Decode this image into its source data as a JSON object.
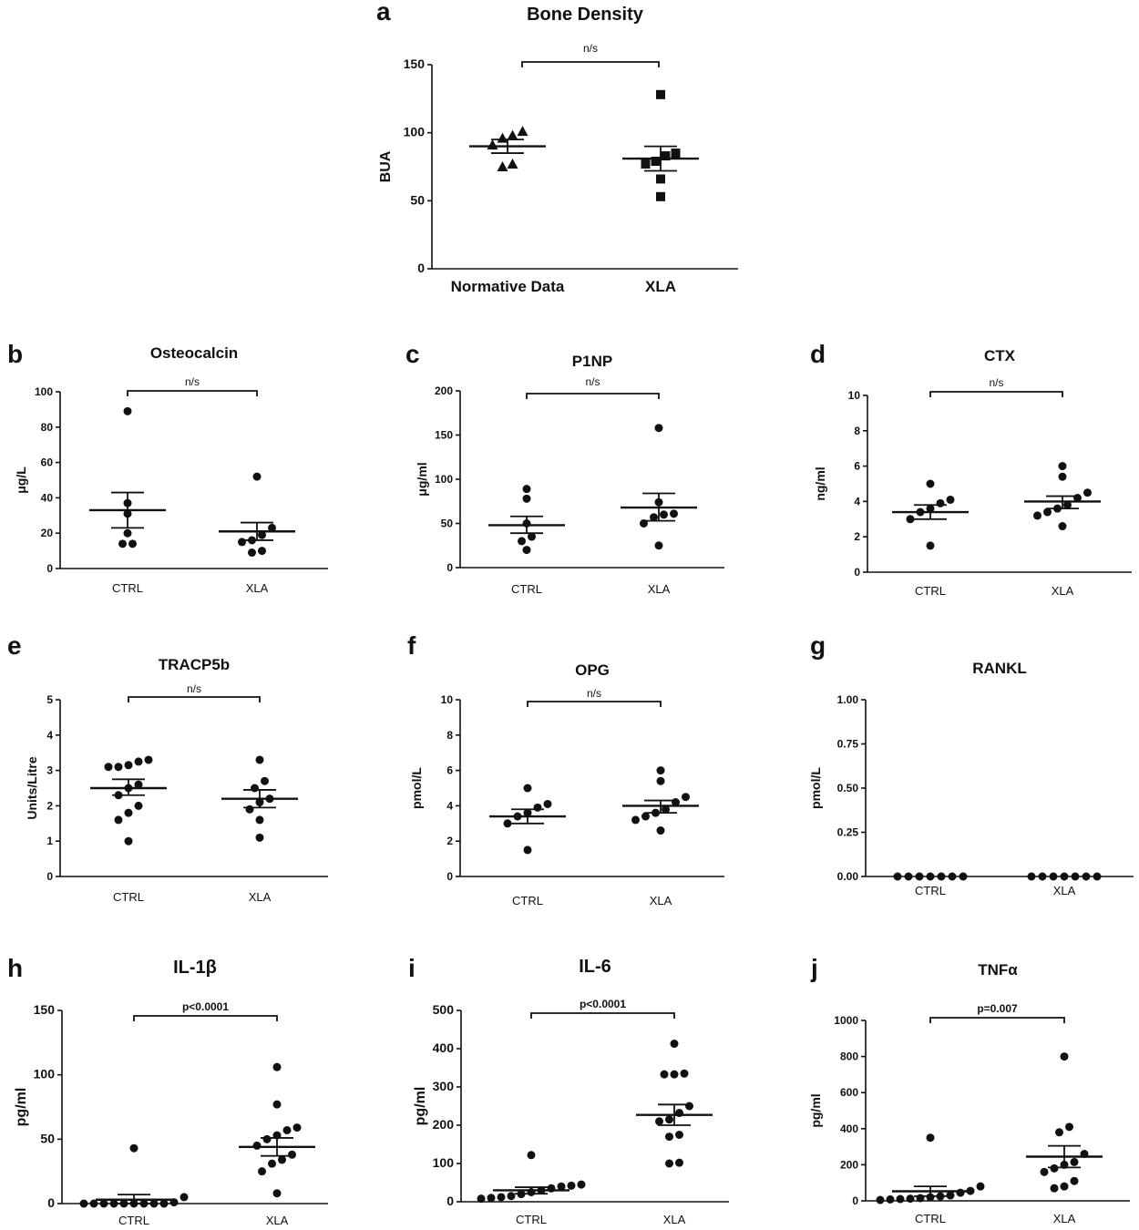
{
  "chart_data": [
    {
      "id": "a",
      "letter": "a",
      "type": "scatter",
      "title": "Bone Density",
      "ylabel": "BUA",
      "ylim": [
        0,
        150
      ],
      "yticks": [
        0,
        50,
        100,
        150
      ],
      "ytick_labels": [
        "0",
        "50",
        "100",
        "150"
      ],
      "categories": [
        "Normative Data",
        "XLA"
      ],
      "series": [
        {
          "name": "Normative Data",
          "marker": "triangle",
          "values": [
            101,
            98,
            96,
            91,
            77,
            75
          ],
          "mean": 90,
          "sem_upper": 95,
          "sem_lower": 85
        },
        {
          "name": "XLA",
          "marker": "square",
          "values": [
            128,
            85,
            83,
            79,
            77,
            66,
            53
          ],
          "mean": 81,
          "sem_upper": 90,
          "sem_lower": 72
        }
      ],
      "comparison": {
        "label": "n/s"
      }
    },
    {
      "id": "b",
      "letter": "b",
      "type": "scatter",
      "title": "Osteocalcin",
      "ylabel": "μg/L",
      "ylim": [
        0,
        100
      ],
      "yticks": [
        0,
        20,
        40,
        60,
        80,
        100
      ],
      "ytick_labels": [
        "0",
        "20",
        "40",
        "60",
        "80",
        "100"
      ],
      "categories": [
        "CTRL",
        "XLA"
      ],
      "series": [
        {
          "name": "CTRL",
          "values": [
            89,
            37,
            31,
            20,
            14,
            14
          ],
          "mean": 33,
          "sem_upper": 43,
          "sem_lower": 23
        },
        {
          "name": "XLA",
          "values": [
            52,
            23,
            19,
            16,
            15,
            10,
            9
          ],
          "mean": 21,
          "sem_upper": 26,
          "sem_lower": 16
        }
      ],
      "comparison": {
        "label": "n/s"
      }
    },
    {
      "id": "c",
      "letter": "c",
      "type": "scatter",
      "title": "P1NP",
      "ylabel": "μg/ml",
      "ylim": [
        0,
        200
      ],
      "yticks": [
        0,
        50,
        100,
        150,
        200
      ],
      "ytick_labels": [
        "0",
        "50",
        "100",
        "150",
        "200"
      ],
      "categories": [
        "CTRL",
        "XLA"
      ],
      "series": [
        {
          "name": "CTRL",
          "values": [
            89,
            78,
            50,
            35,
            30,
            20
          ],
          "mean": 48,
          "sem_upper": 58,
          "sem_lower": 39
        },
        {
          "name": "XLA",
          "values": [
            158,
            74,
            61,
            60,
            57,
            50,
            25
          ],
          "mean": 68,
          "sem_upper": 84,
          "sem_lower": 53
        }
      ],
      "comparison": {
        "label": "n/s"
      }
    },
    {
      "id": "d",
      "letter": "d",
      "type": "scatter",
      "title": "CTX",
      "ylabel": "ng/ml",
      "ylim": [
        0,
        10
      ],
      "yticks": [
        0,
        2,
        4,
        6,
        8,
        10
      ],
      "ytick_labels": [
        "0",
        "2",
        "4",
        "6",
        "8",
        "10"
      ],
      "categories": [
        "CTRL",
        "XLA"
      ],
      "series": [
        {
          "name": "CTRL",
          "values": [
            5.0,
            4.1,
            3.9,
            3.6,
            3.4,
            3.0,
            1.5
          ],
          "mean": 3.4,
          "sem_upper": 3.8,
          "sem_lower": 3.0
        },
        {
          "name": "XLA",
          "values": [
            6.0,
            5.4,
            4.5,
            4.2,
            3.8,
            3.6,
            3.4,
            3.2,
            2.6
          ],
          "mean": 4.0,
          "sem_upper": 4.3,
          "sem_lower": 3.6
        }
      ],
      "comparison": {
        "label": "n/s"
      }
    },
    {
      "id": "e",
      "letter": "e",
      "type": "scatter",
      "title": "TRACP5b",
      "ylabel": "Units/Litre",
      "ylim": [
        0,
        5
      ],
      "yticks": [
        0,
        1,
        2,
        3,
        4,
        5
      ],
      "ytick_labels": [
        "0",
        "1",
        "2",
        "3",
        "4",
        "5"
      ],
      "categories": [
        "CTRL",
        "XLA"
      ],
      "series": [
        {
          "name": "CTRL",
          "values": [
            3.3,
            3.25,
            3.15,
            3.1,
            3.1,
            2.6,
            2.5,
            2.3,
            2.0,
            1.8,
            1.6,
            1.0
          ],
          "mean": 2.5,
          "sem_upper": 2.75,
          "sem_lower": 2.3
        },
        {
          "name": "XLA",
          "values": [
            3.3,
            2.7,
            2.5,
            2.2,
            2.1,
            1.9,
            1.6,
            1.1
          ],
          "mean": 2.2,
          "sem_upper": 2.45,
          "sem_lower": 1.95
        }
      ],
      "comparison": {
        "label": "n/s"
      }
    },
    {
      "id": "f",
      "letter": "f",
      "type": "scatter",
      "title": "OPG",
      "ylabel": "pmol/L",
      "ylim": [
        0,
        10
      ],
      "yticks": [
        0,
        2,
        4,
        6,
        8,
        10
      ],
      "ytick_labels": [
        "0",
        "2",
        "4",
        "6",
        "8",
        "10"
      ],
      "categories": [
        "CTRL",
        "XLA"
      ],
      "series": [
        {
          "name": "CTRL",
          "values": [
            5.0,
            4.1,
            3.9,
            3.6,
            3.4,
            3.0,
            1.5
          ],
          "mean": 3.4,
          "sem_upper": 3.8,
          "sem_lower": 3.0
        },
        {
          "name": "XLA",
          "values": [
            6.0,
            5.4,
            4.5,
            4.2,
            3.8,
            3.6,
            3.4,
            3.2,
            2.6
          ],
          "mean": 4.0,
          "sem_upper": 4.3,
          "sem_lower": 3.6
        }
      ],
      "comparison": {
        "label": "n/s"
      }
    },
    {
      "id": "g",
      "letter": "g",
      "type": "scatter",
      "title": "RANKL",
      "ylabel": "pmol/L",
      "ylim": [
        0,
        1
      ],
      "yticks": [
        0,
        0.25,
        0.5,
        0.75,
        1
      ],
      "ytick_labels": [
        "0.00",
        "0.25",
        "0.50",
        "0.75",
        "1.00"
      ],
      "categories": [
        "CTRL",
        "XLA"
      ],
      "series": [
        {
          "name": "CTRL",
          "values": [
            0,
            0,
            0,
            0,
            0,
            0,
            0
          ]
        },
        {
          "name": "XLA",
          "values": [
            0,
            0,
            0,
            0,
            0,
            0,
            0
          ]
        }
      ]
    },
    {
      "id": "h",
      "letter": "h",
      "type": "scatter",
      "title": "IL-1β",
      "ylabel": "pg/ml",
      "ylim": [
        0,
        150
      ],
      "yticks": [
        0,
        50,
        100,
        150
      ],
      "ytick_labels": [
        "0",
        "50",
        "100",
        "150"
      ],
      "categories": [
        "CTRL",
        "XLA"
      ],
      "series": [
        {
          "name": "CTRL",
          "values": [
            43,
            5,
            1,
            0,
            0,
            0,
            0,
            0,
            0,
            0,
            0,
            0
          ],
          "mean": 3,
          "sem_upper": 7,
          "sem_lower": 0
        },
        {
          "name": "XLA",
          "values": [
            106,
            77,
            59,
            57,
            53,
            50,
            45,
            38,
            34,
            31,
            25,
            8
          ],
          "mean": 44,
          "sem_upper": 51,
          "sem_lower": 37
        }
      ],
      "comparison": {
        "label": "p<0.0001"
      }
    },
    {
      "id": "i",
      "letter": "i",
      "type": "scatter",
      "title": "IL-6",
      "ylabel": "pg/ml",
      "ylim": [
        0,
        500
      ],
      "yticks": [
        0,
        100,
        200,
        300,
        400,
        500
      ],
      "ytick_labels": [
        "0",
        "100",
        "200",
        "300",
        "400",
        "500"
      ],
      "categories": [
        "CTRL",
        "XLA"
      ],
      "series": [
        {
          "name": "CTRL",
          "values": [
            122,
            45,
            42,
            40,
            35,
            30,
            25,
            20,
            15,
            12,
            10,
            8
          ],
          "mean": 30,
          "sem_upper": 38,
          "sem_lower": 21
        },
        {
          "name": "XLA",
          "values": [
            413,
            335,
            333,
            333,
            250,
            232,
            215,
            210,
            175,
            170,
            102,
            100
          ],
          "mean": 227,
          "sem_upper": 254,
          "sem_lower": 200
        }
      ],
      "comparison": {
        "label": "p<0.0001"
      }
    },
    {
      "id": "j",
      "letter": "j",
      "type": "scatter",
      "title": "TNFα",
      "ylabel": "pg/ml",
      "ylim": [
        0,
        1000
      ],
      "yticks": [
        0,
        200,
        400,
        600,
        800,
        1000
      ],
      "ytick_labels": [
        "0",
        "200",
        "400",
        "600",
        "800",
        "1000"
      ],
      "categories": [
        "CTRL",
        "XLA"
      ],
      "series": [
        {
          "name": "CTRL",
          "values": [
            350,
            80,
            55,
            45,
            30,
            25,
            20,
            15,
            12,
            10,
            8,
            5
          ],
          "mean": 53,
          "sem_upper": 80,
          "sem_lower": 26
        },
        {
          "name": "XLA",
          "values": [
            800,
            410,
            380,
            260,
            215,
            200,
            180,
            160,
            110,
            80,
            70
          ],
          "mean": 245,
          "sem_upper": 305,
          "sem_lower": 185
        }
      ],
      "comparison": {
        "label": "p=0.007"
      }
    }
  ]
}
